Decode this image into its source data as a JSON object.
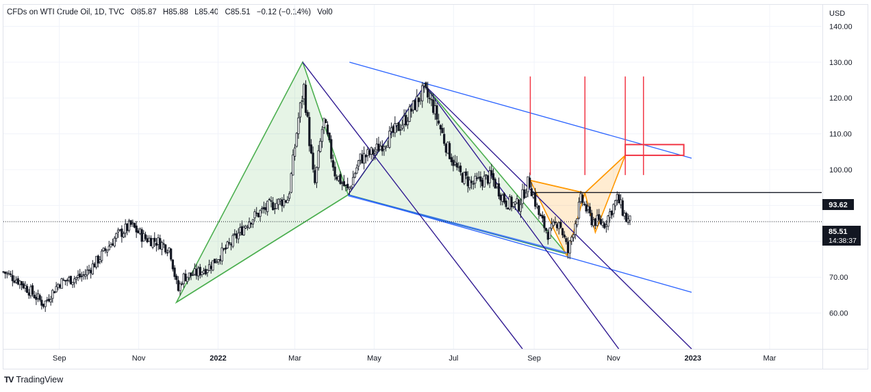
{
  "legend": {
    "symbol": "CFDs on WTI Crude Oil, 1D, TVC",
    "open_label": "O",
    "open": "85.87",
    "high_label": "H",
    "high": "85.88",
    "low_label": "L",
    "low": "85.40",
    "close_label": "C",
    "close": "85.51",
    "change": "−0.12 (−0.14%)",
    "volume": "Vol0"
  },
  "currency": "USD",
  "price_tags": {
    "level_value": "93.62",
    "last_price": "85.51",
    "countdown": "14:38:37"
  },
  "branding": {
    "logo_text": "TV",
    "name": "TradingView"
  },
  "colors": {
    "up": "#26a69a",
    "down": "#131722",
    "candle": "#131722",
    "pattern_green": "#4caf50",
    "pattern_orange": "#ff9800",
    "channel_blue": "#2962ff",
    "pitchfork": "#311b92",
    "target_red": "#f23645"
  },
  "chart_data": {
    "type": "candlestick",
    "title": "CFDs on WTI Crude Oil, 1D, TVC",
    "currency": "USD",
    "ylim": [
      50,
      146
    ],
    "y_ticks": [
      60,
      70,
      80,
      90,
      100,
      110,
      120,
      130,
      140
    ],
    "y_tick_labels": [
      "60.00",
      "70.00",
      "80.00",
      "90.00",
      "100.00",
      "110.00",
      "120.00",
      "130.00",
      "140.00"
    ],
    "x_tick_labels": [
      {
        "label": "Sep",
        "date": "2021-09-01",
        "bold": false
      },
      {
        "label": "Nov",
        "date": "2021-11-01",
        "bold": false
      },
      {
        "label": "2022",
        "date": "2022-01-01",
        "bold": true
      },
      {
        "label": "Mar",
        "date": "2022-03-01",
        "bold": false
      },
      {
        "label": "May",
        "date": "2022-05-01",
        "bold": false
      },
      {
        "label": "Jul",
        "date": "2022-07-01",
        "bold": false
      },
      {
        "label": "Sep",
        "date": "2022-09-01",
        "bold": false
      },
      {
        "label": "Nov",
        "date": "2022-11-01",
        "bold": false
      },
      {
        "label": "2023",
        "date": "2023-01-01",
        "bold": true
      },
      {
        "label": "Mar",
        "date": "2023-03-01",
        "bold": false
      }
    ],
    "x_range": [
      "2021-07-20",
      "2023-04-10"
    ],
    "price_path": [
      [
        "2021-07-20",
        71.5
      ],
      [
        "2021-08-01",
        69
      ],
      [
        "2021-08-20",
        62.5
      ],
      [
        "2021-09-01",
        68.5
      ],
      [
        "2021-09-20",
        70.5
      ],
      [
        "2021-10-01",
        75
      ],
      [
        "2021-10-15",
        81.5
      ],
      [
        "2021-10-26",
        84.5
      ],
      [
        "2021-11-05",
        81
      ],
      [
        "2021-11-15",
        80
      ],
      [
        "2021-11-25",
        78
      ],
      [
        "2021-12-01",
        66
      ],
      [
        "2021-12-05",
        70
      ],
      [
        "2021-12-15",
        71
      ],
      [
        "2021-12-25",
        73
      ],
      [
        "2022-01-10",
        79
      ],
      [
        "2022-01-25",
        86
      ],
      [
        "2022-02-10",
        90
      ],
      [
        "2022-02-24",
        92
      ],
      [
        "2022-03-04",
        115
      ],
      [
        "2022-03-08",
        123
      ],
      [
        "2022-03-16",
        95
      ],
      [
        "2022-03-23",
        114
      ],
      [
        "2022-04-01",
        99
      ],
      [
        "2022-04-11",
        94
      ],
      [
        "2022-04-20",
        103
      ],
      [
        "2022-05-01",
        105
      ],
      [
        "2022-05-15",
        110
      ],
      [
        "2022-05-25",
        114
      ],
      [
        "2022-06-08",
        122
      ],
      [
        "2022-06-15",
        118
      ],
      [
        "2022-06-25",
        107
      ],
      [
        "2022-07-05",
        99
      ],
      [
        "2022-07-15",
        96
      ],
      [
        "2022-07-30",
        98
      ],
      [
        "2022-08-10",
        91
      ],
      [
        "2022-08-20",
        90
      ],
      [
        "2022-08-28",
        97
      ],
      [
        "2022-09-05",
        87
      ],
      [
        "2022-09-12",
        82
      ],
      [
        "2022-09-20",
        86
      ],
      [
        "2022-09-27",
        77
      ],
      [
        "2022-10-07",
        92
      ],
      [
        "2022-10-15",
        86
      ],
      [
        "2022-10-25",
        85
      ],
      [
        "2022-11-04",
        92
      ],
      [
        "2022-11-11",
        86
      ],
      [
        "2022-11-14",
        85.51
      ]
    ],
    "annotations": {
      "horizontal_level": 93.62,
      "last_price": 85.51,
      "harmonic_green": [
        [
          "2021-11-30",
          63
        ],
        [
          "2022-03-07",
          130
        ],
        [
          "2022-04-11",
          93
        ],
        [
          "2022-06-09",
          123.5
        ],
        [
          "2022-09-26",
          76.5
        ]
      ],
      "harmonic_orange": [
        [
          "2022-08-29",
          97
        ],
        [
          "2022-09-26",
          76
        ],
        [
          "2022-10-10",
          93.5
        ],
        [
          "2022-10-18",
          82.5
        ],
        [
          "2022-11-10",
          104
        ]
      ],
      "target_zone": {
        "from": "2022-11-10",
        "to": "2022-12-25",
        "low": 104,
        "high": 107
      },
      "vertical_markers": [
        "2022-08-29",
        "2022-10-10",
        "2022-11-10",
        "2022-11-24"
      ]
    }
  }
}
